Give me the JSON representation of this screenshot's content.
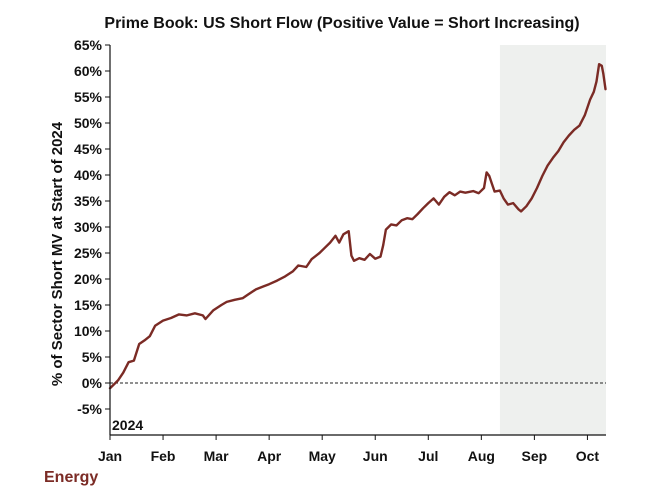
{
  "chart_data": {
    "type": "line",
    "title": "Prime Book: US Short Flow (Positive Value = Short Increasing)",
    "ylabel": "% of Sector Short MV at Start of 2024",
    "xlabel": "",
    "year_label": "2024",
    "sector_label": "Energy",
    "ylim": [
      -10,
      65
    ],
    "xlim": [
      0,
      9.35
    ],
    "yticks": [
      -5,
      0,
      5,
      10,
      15,
      20,
      25,
      30,
      35,
      40,
      45,
      50,
      55,
      60,
      65
    ],
    "ytick_labels": [
      "-5%",
      "0%",
      "5%",
      "10%",
      "15%",
      "20%",
      "25%",
      "30%",
      "35%",
      "40%",
      "45%",
      "50%",
      "55%",
      "60%",
      "65%"
    ],
    "xtick_positions": [
      0,
      1,
      2,
      3,
      4,
      5,
      6,
      7,
      8,
      9
    ],
    "xtick_labels": [
      "Jan",
      "Feb",
      "Mar",
      "Apr",
      "May",
      "Jun",
      "Jul",
      "Aug",
      "Sep",
      "Oct"
    ],
    "shaded_region": [
      7.35,
      9.35
    ],
    "zero_line": 0,
    "colors": {
      "line": "#7b2b25",
      "shade": "#eef0ee",
      "sector_label": "#7b2b25",
      "axis": "#111111"
    },
    "series": [
      {
        "name": "Energy",
        "points": [
          [
            0.0,
            -1.0
          ],
          [
            0.05,
            -0.5
          ],
          [
            0.15,
            0.5
          ],
          [
            0.25,
            2.0
          ],
          [
            0.35,
            4.0
          ],
          [
            0.45,
            4.3
          ],
          [
            0.55,
            7.5
          ],
          [
            0.65,
            8.2
          ],
          [
            0.75,
            9.0
          ],
          [
            0.85,
            11.0
          ],
          [
            1.0,
            12.0
          ],
          [
            1.15,
            12.5
          ],
          [
            1.3,
            13.2
          ],
          [
            1.45,
            13.0
          ],
          [
            1.6,
            13.4
          ],
          [
            1.75,
            13.0
          ],
          [
            1.8,
            12.3
          ],
          [
            1.95,
            14.0
          ],
          [
            2.1,
            15.0
          ],
          [
            2.2,
            15.6
          ],
          [
            2.35,
            16.0
          ],
          [
            2.5,
            16.3
          ],
          [
            2.6,
            17.0
          ],
          [
            2.75,
            18.0
          ],
          [
            2.9,
            18.6
          ],
          [
            3.0,
            19.0
          ],
          [
            3.15,
            19.7
          ],
          [
            3.3,
            20.5
          ],
          [
            3.45,
            21.5
          ],
          [
            3.55,
            22.6
          ],
          [
            3.7,
            22.3
          ],
          [
            3.8,
            23.8
          ],
          [
            3.95,
            25.0
          ],
          [
            4.05,
            26.0
          ],
          [
            4.15,
            27.0
          ],
          [
            4.25,
            28.3
          ],
          [
            4.32,
            27.0
          ],
          [
            4.4,
            28.6
          ],
          [
            4.5,
            29.2
          ],
          [
            4.55,
            24.5
          ],
          [
            4.6,
            23.5
          ],
          [
            4.7,
            24.0
          ],
          [
            4.8,
            23.7
          ],
          [
            4.9,
            24.8
          ],
          [
            5.0,
            23.9
          ],
          [
            5.1,
            24.3
          ],
          [
            5.15,
            26.5
          ],
          [
            5.2,
            29.5
          ],
          [
            5.3,
            30.5
          ],
          [
            5.4,
            30.3
          ],
          [
            5.5,
            31.3
          ],
          [
            5.6,
            31.7
          ],
          [
            5.7,
            31.5
          ],
          [
            5.8,
            32.5
          ],
          [
            5.9,
            33.6
          ],
          [
            6.0,
            34.6
          ],
          [
            6.1,
            35.5
          ],
          [
            6.2,
            34.3
          ],
          [
            6.3,
            35.8
          ],
          [
            6.4,
            36.7
          ],
          [
            6.5,
            36.1
          ],
          [
            6.6,
            36.8
          ],
          [
            6.7,
            36.6
          ],
          [
            6.85,
            36.9
          ],
          [
            6.95,
            36.5
          ],
          [
            7.05,
            37.5
          ],
          [
            7.1,
            40.5
          ],
          [
            7.15,
            39.8
          ],
          [
            7.2,
            38.3
          ],
          [
            7.25,
            36.8
          ],
          [
            7.35,
            37.0
          ],
          [
            7.42,
            35.5
          ],
          [
            7.5,
            34.3
          ],
          [
            7.6,
            34.6
          ],
          [
            7.7,
            33.4
          ],
          [
            7.75,
            33.0
          ],
          [
            7.85,
            34.0
          ],
          [
            7.95,
            35.5
          ],
          [
            8.05,
            37.5
          ],
          [
            8.15,
            39.8
          ],
          [
            8.25,
            41.8
          ],
          [
            8.35,
            43.3
          ],
          [
            8.45,
            44.6
          ],
          [
            8.55,
            46.3
          ],
          [
            8.65,
            47.6
          ],
          [
            8.75,
            48.7
          ],
          [
            8.85,
            49.5
          ],
          [
            8.95,
            51.5
          ],
          [
            9.05,
            54.5
          ],
          [
            9.12,
            56.0
          ],
          [
            9.17,
            58.0
          ],
          [
            9.22,
            61.3
          ],
          [
            9.27,
            61.0
          ],
          [
            9.3,
            59.5
          ],
          [
            9.34,
            56.5
          ]
        ]
      }
    ]
  }
}
